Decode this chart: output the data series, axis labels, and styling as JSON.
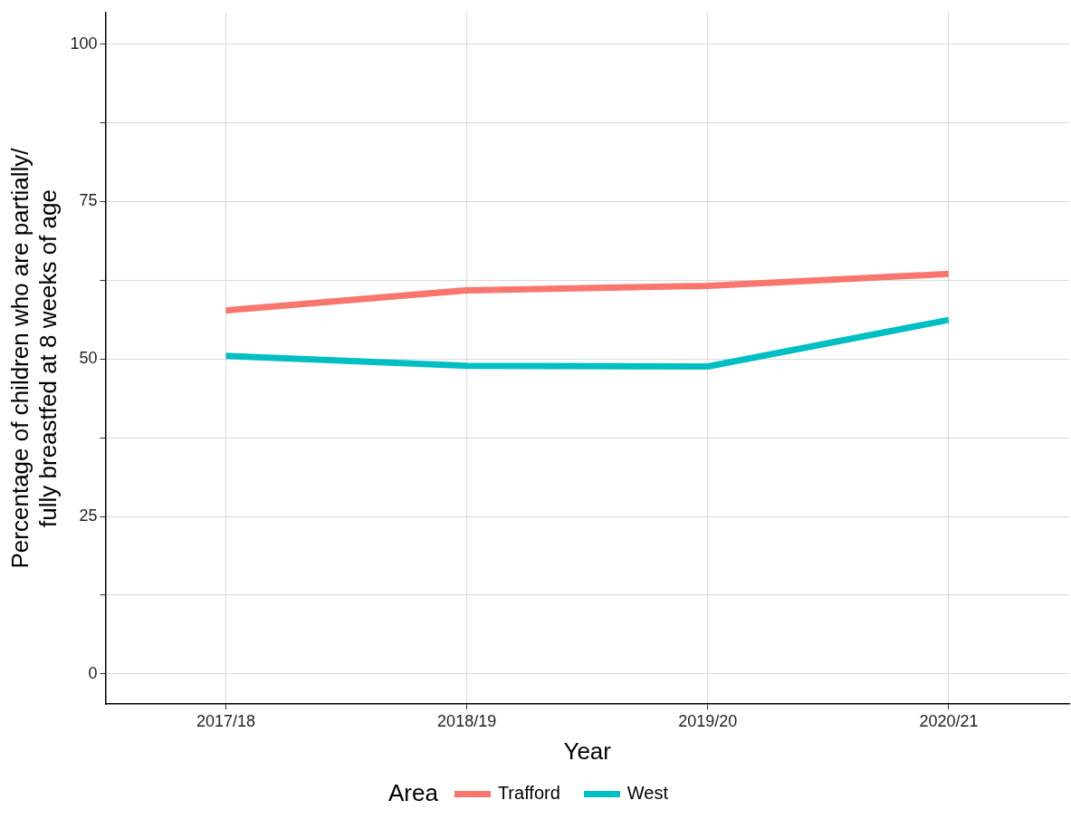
{
  "chart_data": {
    "type": "line",
    "xlabel": "Year",
    "ylabel": "Percentage of children who are partially/\nfully breastfed at 8 weeks of age",
    "legend_title": "Area",
    "categories": [
      "2017/18",
      "2018/19",
      "2019/20",
      "2020/21"
    ],
    "series": [
      {
        "name": "Trafford",
        "color": "#f8766d",
        "values": [
          57.7,
          60.9,
          61.6,
          63.5
        ]
      },
      {
        "name": "West",
        "color": "#00bfc4",
        "values": [
          50.5,
          48.9,
          48.8,
          56.2
        ]
      }
    ],
    "ylim": [
      -4.8,
      105
    ],
    "yticks": [
      0,
      {
        "value": 12.5,
        "label": null
      },
      25,
      {
        "value": 37.5,
        "label": null
      },
      50,
      {
        "value": 62.5,
        "label": null
      },
      75,
      {
        "value": 87.5,
        "label": null
      },
      100
    ],
    "grid": true,
    "legend": "bottom",
    "marker": "none",
    "line_style": "solid"
  }
}
